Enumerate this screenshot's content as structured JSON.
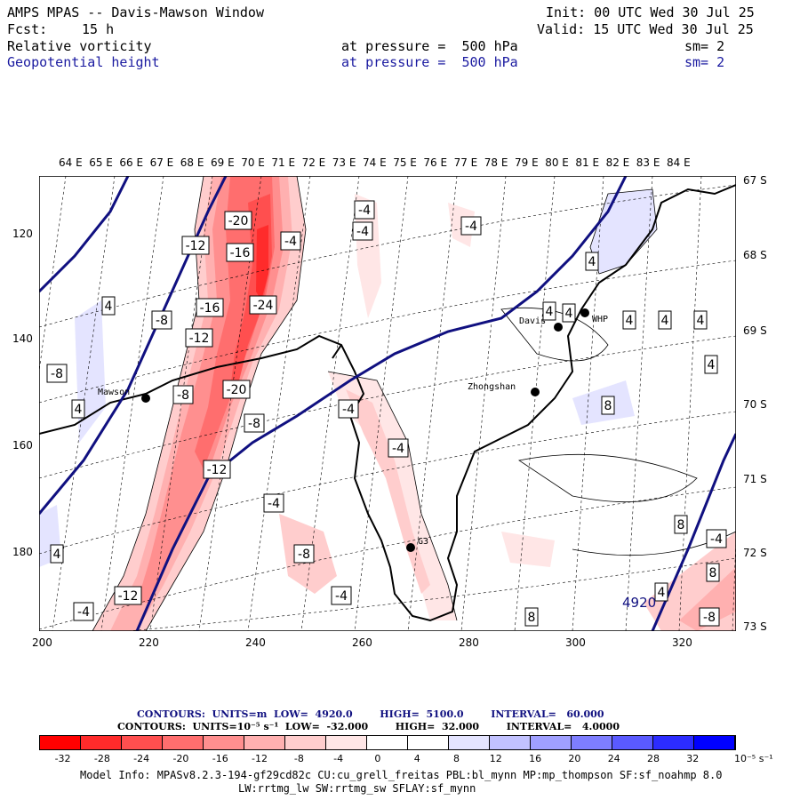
{
  "header": {
    "title": "AMPS MPAS -- Davis-Mawson Window",
    "init": "Init: 00 UTC Wed 30 Jul 25",
    "fcst_label": "Fcst:",
    "fcst_value": "15 h",
    "valid": "Valid: 15 UTC Wed 30 Jul 25",
    "field1": "Relative vorticity",
    "field1_level": "at pressure =  500 hPa",
    "field1_sm": "sm= 2",
    "field2": "Geopotential height",
    "field2_level": "at pressure =  500 hPa",
    "field2_sm": "sm= 2"
  },
  "map": {
    "lon_labels": [
      "64 E",
      "65 E",
      "66 E",
      "67 E",
      "68 E",
      "69 E",
      "70 E",
      "71 E",
      "72 E",
      "73 E",
      "74 E",
      "75 E",
      "76 E",
      "77 E",
      "78 E",
      "79 E",
      "80 E",
      "81 E",
      "82 E",
      "83 E",
      "84 E"
    ],
    "lat_labels": [
      "67 S",
      "68 S",
      "69 S",
      "70 S",
      "71 S",
      "72 S",
      "73 S"
    ],
    "y_ticks": [
      "120",
      "140",
      "160",
      "180"
    ],
    "x_ticks": [
      "200",
      "220",
      "240",
      "260",
      "280",
      "300",
      "320"
    ],
    "stations": [
      {
        "name": "Mawson"
      },
      {
        "name": "Davis"
      },
      {
        "name": "WHP"
      },
      {
        "name": "Zhongshan"
      },
      {
        "name": "G3"
      }
    ],
    "height_label": "4920",
    "contour_labels": [
      "-20",
      "-4",
      "-4",
      "-4",
      "-12",
      "-16",
      "-4",
      "-16",
      "-24",
      "-12",
      "-20",
      "-8",
      "-8",
      "-12",
      "-4",
      "-8",
      "-4",
      "-12",
      "-4",
      "-4",
      "-8",
      "-8",
      "4",
      "4",
      "4",
      "4",
      "4",
      "4",
      "4",
      "4",
      "8",
      "8",
      "8",
      "4",
      "-4",
      "4",
      "8",
      "-8",
      "4",
      "-4"
    ]
  },
  "legend": {
    "line1": "CONTOURS:  UNITS=m  LOW=  4920.0        HIGH=  5100.0        INTERVAL=   60.000",
    "line2": "CONTOURS:  UNITS=10⁻⁵ s⁻¹  LOW=  -32.000        HIGH=  32.000        INTERVAL=   4.0000",
    "ticks": [
      "-32",
      "-28",
      "-24",
      "-20",
      "-16",
      "-12",
      "-8",
      "-4",
      "0",
      "4",
      "8",
      "12",
      "16",
      "20",
      "24",
      "28",
      "32"
    ],
    "units": "10⁻⁵ s⁻¹",
    "colors": [
      "#ff0000",
      "#ff2b2b",
      "#ff4f4f",
      "#ff6e6e",
      "#ff8f8f",
      "#ffb0b0",
      "#ffcdcd",
      "#ffe6e6",
      "#ffffff",
      "#ffffff",
      "#e4e4ff",
      "#c2c2ff",
      "#a0a0ff",
      "#7e7eff",
      "#5a5aff",
      "#2c2cff",
      "#0000ff"
    ]
  },
  "footer": {
    "line1": "Model Info: MPASv8.2.3-194-gf29cd82c CU:cu_grell_freitas PBL:bl_mynn MP:mp_thompson SF:sf_noahmp 8.0",
    "line2": "LW:rrtmg_lw SW:rrtmg_sw SFLAY:sf_mynn"
  },
  "colors": {
    "height_contour": "#101080",
    "label_blue": "#1a1aa0"
  }
}
